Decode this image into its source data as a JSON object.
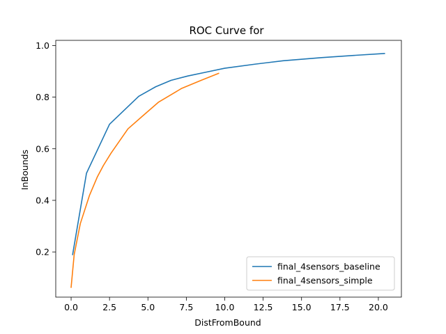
{
  "chart_data": {
    "type": "line",
    "title": "ROC Curve for",
    "xlabel": "DistFromBound",
    "ylabel": "InBounds",
    "xlim": [
      -1.0,
      21.5
    ],
    "ylim": [
      0.025,
      1.02
    ],
    "x_ticks": [
      0.0,
      2.5,
      5.0,
      7.5,
      10.0,
      12.5,
      15.0,
      17.5,
      20.0
    ],
    "x_tick_labels": [
      "0.0",
      "2.5",
      "5.0",
      "7.5",
      "10.0",
      "12.5",
      "15.0",
      "17.5",
      "20.0"
    ],
    "y_ticks": [
      0.2,
      0.4,
      0.6,
      0.8,
      1.0
    ],
    "y_tick_labels": [
      "0.2",
      "0.4",
      "0.6",
      "0.8",
      "1.0"
    ],
    "grid": false,
    "legend_position": "bottom-right",
    "series": [
      {
        "name": "final_4sensors_baseline",
        "color": "#1f77b4",
        "x": [
          0.1,
          1.0,
          2.5,
          4.4,
          5.5,
          6.5,
          7.6,
          8.8,
          10.0,
          12.0,
          13.8,
          16.3,
          18.5,
          20.4
        ],
        "y": [
          0.19,
          0.505,
          0.695,
          0.803,
          0.84,
          0.865,
          0.882,
          0.897,
          0.912,
          0.928,
          0.941,
          0.953,
          0.962,
          0.969
        ]
      },
      {
        "name": "final_4sensors_simple",
        "color": "#ff7f0e",
        "x": [
          0.0,
          0.2,
          0.6,
          1.2,
          1.7,
          2.1,
          2.6,
          3.7,
          4.6,
          5.7,
          7.2,
          8.5,
          9.6
        ],
        "y": [
          0.063,
          0.19,
          0.31,
          0.42,
          0.49,
          0.535,
          0.583,
          0.677,
          0.724,
          0.781,
          0.834,
          0.866,
          0.892
        ]
      }
    ]
  }
}
